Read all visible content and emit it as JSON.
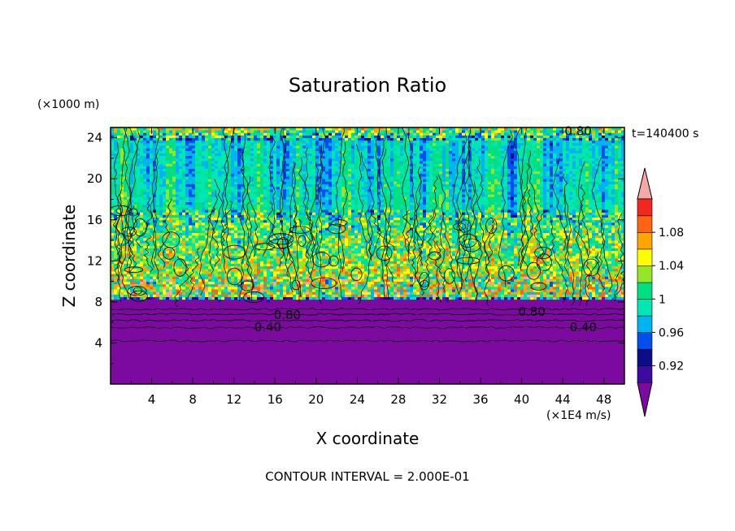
{
  "chart_data": {
    "type": "heatmap",
    "title": "Saturation Ratio",
    "xlabel": "X coordinate",
    "ylabel": "Z coordinate",
    "x_unit": "(×1E4 m/s)",
    "y_unit": "(×1000 m)",
    "time_label": "t=140400 s",
    "footer": "CONTOUR INTERVAL = 2.000E-01",
    "xlim": [
      0,
      50
    ],
    "ylim": [
      0,
      25
    ],
    "x_ticks": [
      "4",
      "8",
      "12",
      "16",
      "20",
      "24",
      "28",
      "32",
      "36",
      "40",
      "44",
      "48"
    ],
    "y_ticks": [
      "4",
      "8",
      "12",
      "16",
      "20",
      "24"
    ],
    "contour_labels": [
      {
        "text": "0.80",
        "x": 17.2,
        "y": 6.7
      },
      {
        "text": "0.40",
        "x": 15.3,
        "y": 5.5
      },
      {
        "text": "0.80",
        "x": 41.0,
        "y": 7.0
      },
      {
        "text": "0.40",
        "x": 46.0,
        "y": 5.5
      },
      {
        "text": "0.80",
        "x": 45.5,
        "y": 24.6
      }
    ],
    "colorbar": {
      "labels": [
        "1.08",
        "1.04",
        "1",
        "0.96",
        "0.92"
      ],
      "levels": [
        0.9,
        0.92,
        0.94,
        0.96,
        0.98,
        1.0,
        1.02,
        1.04,
        1.06,
        1.08,
        1.1
      ],
      "colors": [
        "#3c0a9e",
        "#0d0d8c",
        "#0050f0",
        "#00b4f0",
        "#00e6b4",
        "#00e082",
        "#96e628",
        "#ffff00",
        "#ffa500",
        "#ff6414",
        "#f0281e"
      ],
      "under_color": "#7d0aa0",
      "over_color": "#f5a8a8"
    },
    "field_profile": [
      {
        "z": 0,
        "value": 0.2
      },
      {
        "z": 7,
        "value": 0.2
      },
      {
        "z": 8.5,
        "value": 1.04
      },
      {
        "z": 14,
        "value": 1.02
      },
      {
        "z": 18,
        "value": 0.99
      },
      {
        "z": 24,
        "value": 0.98
      },
      {
        "z": 25,
        "value": 1.04
      }
    ]
  }
}
